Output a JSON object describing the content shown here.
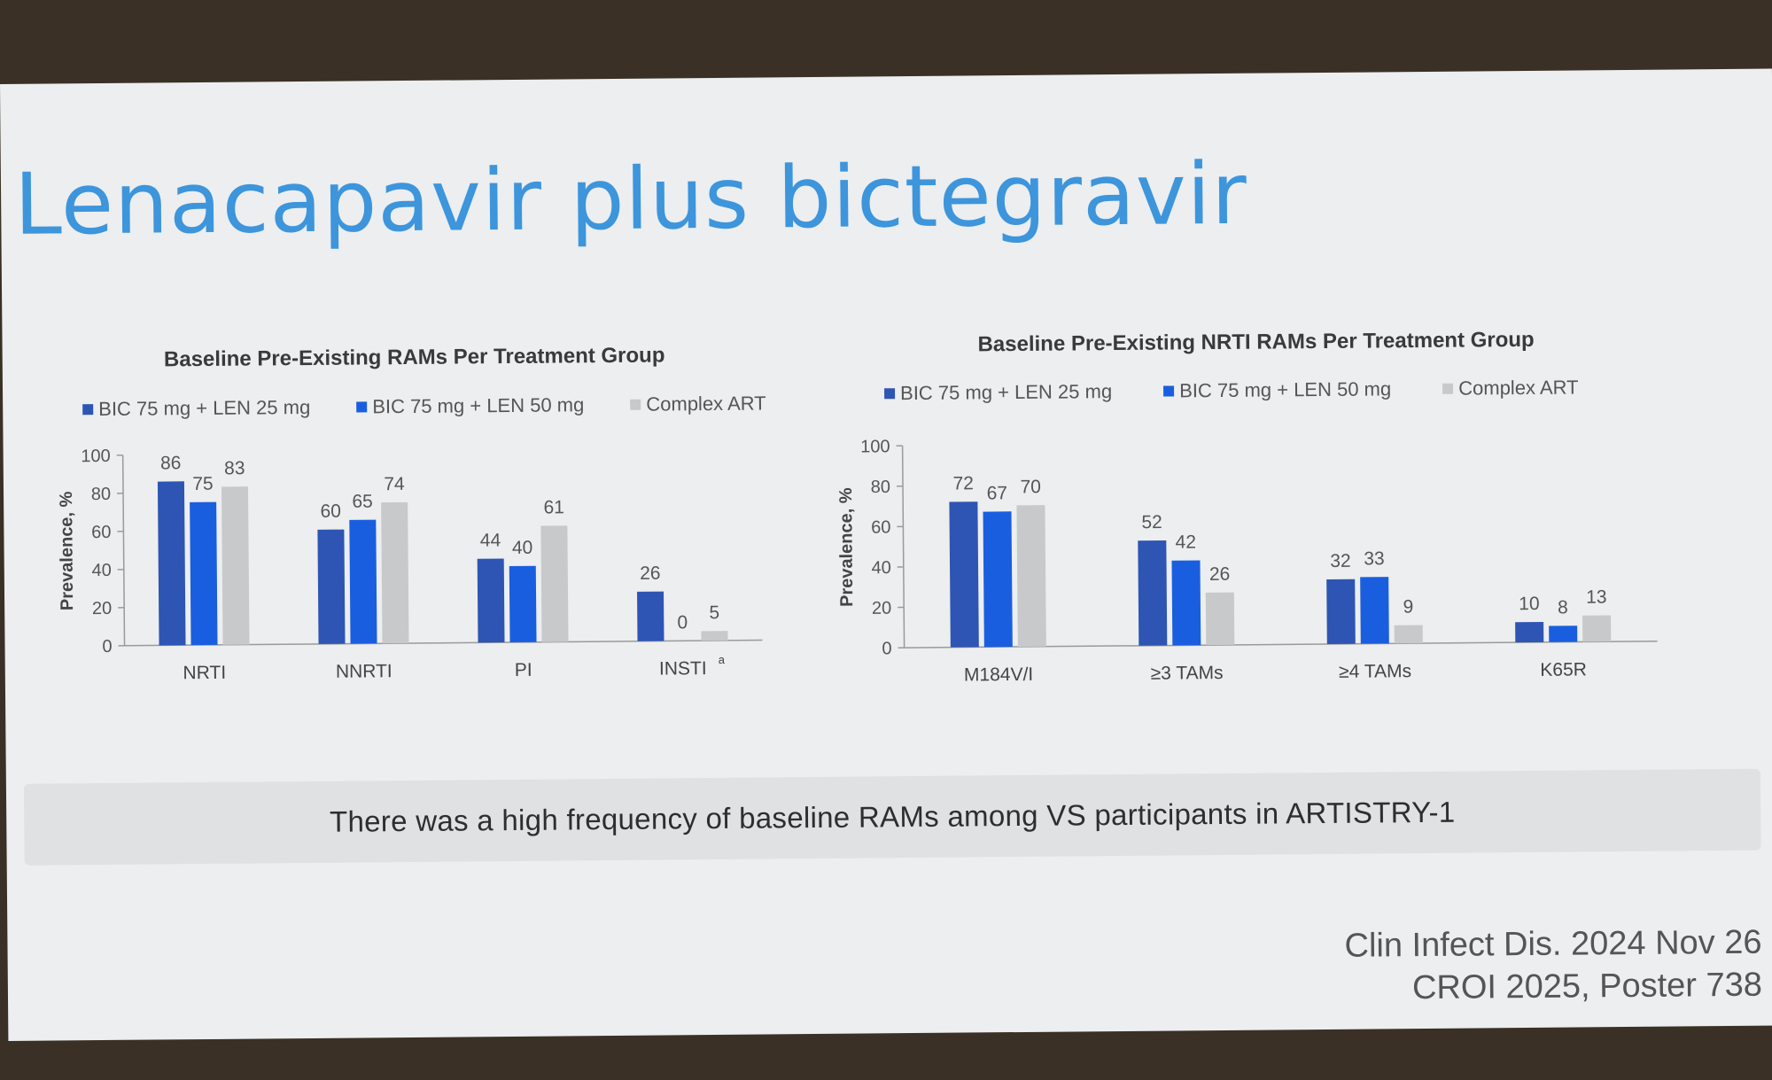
{
  "slide": {
    "title": "Lenacapavir plus bictegravir",
    "summary": "There was a high frequency of baseline RAMs among VS participants in ARTISTRY-1",
    "citation_1": "Clin Infect Dis. 2024 Nov 26",
    "citation_2": "CROI 2025, Poster 738"
  },
  "colors": {
    "series": [
      "#2e55b4",
      "#1a5ee0",
      "#c8c9cb"
    ]
  },
  "chart_data": [
    {
      "type": "bar",
      "title": "Baseline Pre-Existing RAMs Per Treatment Group",
      "ylabel": "Prevalence, %",
      "ylim": [
        0,
        100
      ],
      "yticks": [
        0,
        20,
        40,
        60,
        80,
        100
      ],
      "categories": [
        "NRTI",
        "NNRTI",
        "PI",
        "INSTI"
      ],
      "category_footnote": "a",
      "legend_position": "top",
      "grid": false,
      "series": [
        {
          "name": "BIC 75 mg + LEN 25 mg",
          "values": [
            86,
            60,
            44,
            26
          ]
        },
        {
          "name": "BIC 75 mg + LEN 50 mg",
          "values": [
            75,
            65,
            40,
            0
          ]
        },
        {
          "name": "Complex ART",
          "values": [
            83,
            74,
            61,
            5
          ]
        }
      ]
    },
    {
      "type": "bar",
      "title": "Baseline Pre-Existing NRTI RAMs Per Treatment Group",
      "ylabel": "Prevalence, %",
      "ylim": [
        0,
        100
      ],
      "yticks": [
        0,
        20,
        40,
        60,
        80,
        100
      ],
      "categories": [
        "M184V/I",
        "≥3 TAMs",
        "≥4 TAMs",
        "K65R"
      ],
      "legend_position": "top",
      "grid": false,
      "series": [
        {
          "name": "BIC 75 mg + LEN 25 mg",
          "values": [
            72,
            52,
            32,
            10
          ]
        },
        {
          "name": "BIC 75 mg + LEN 50 mg",
          "values": [
            67,
            42,
            33,
            8
          ]
        },
        {
          "name": "Complex ART",
          "values": [
            70,
            26,
            9,
            13
          ]
        }
      ]
    }
  ]
}
